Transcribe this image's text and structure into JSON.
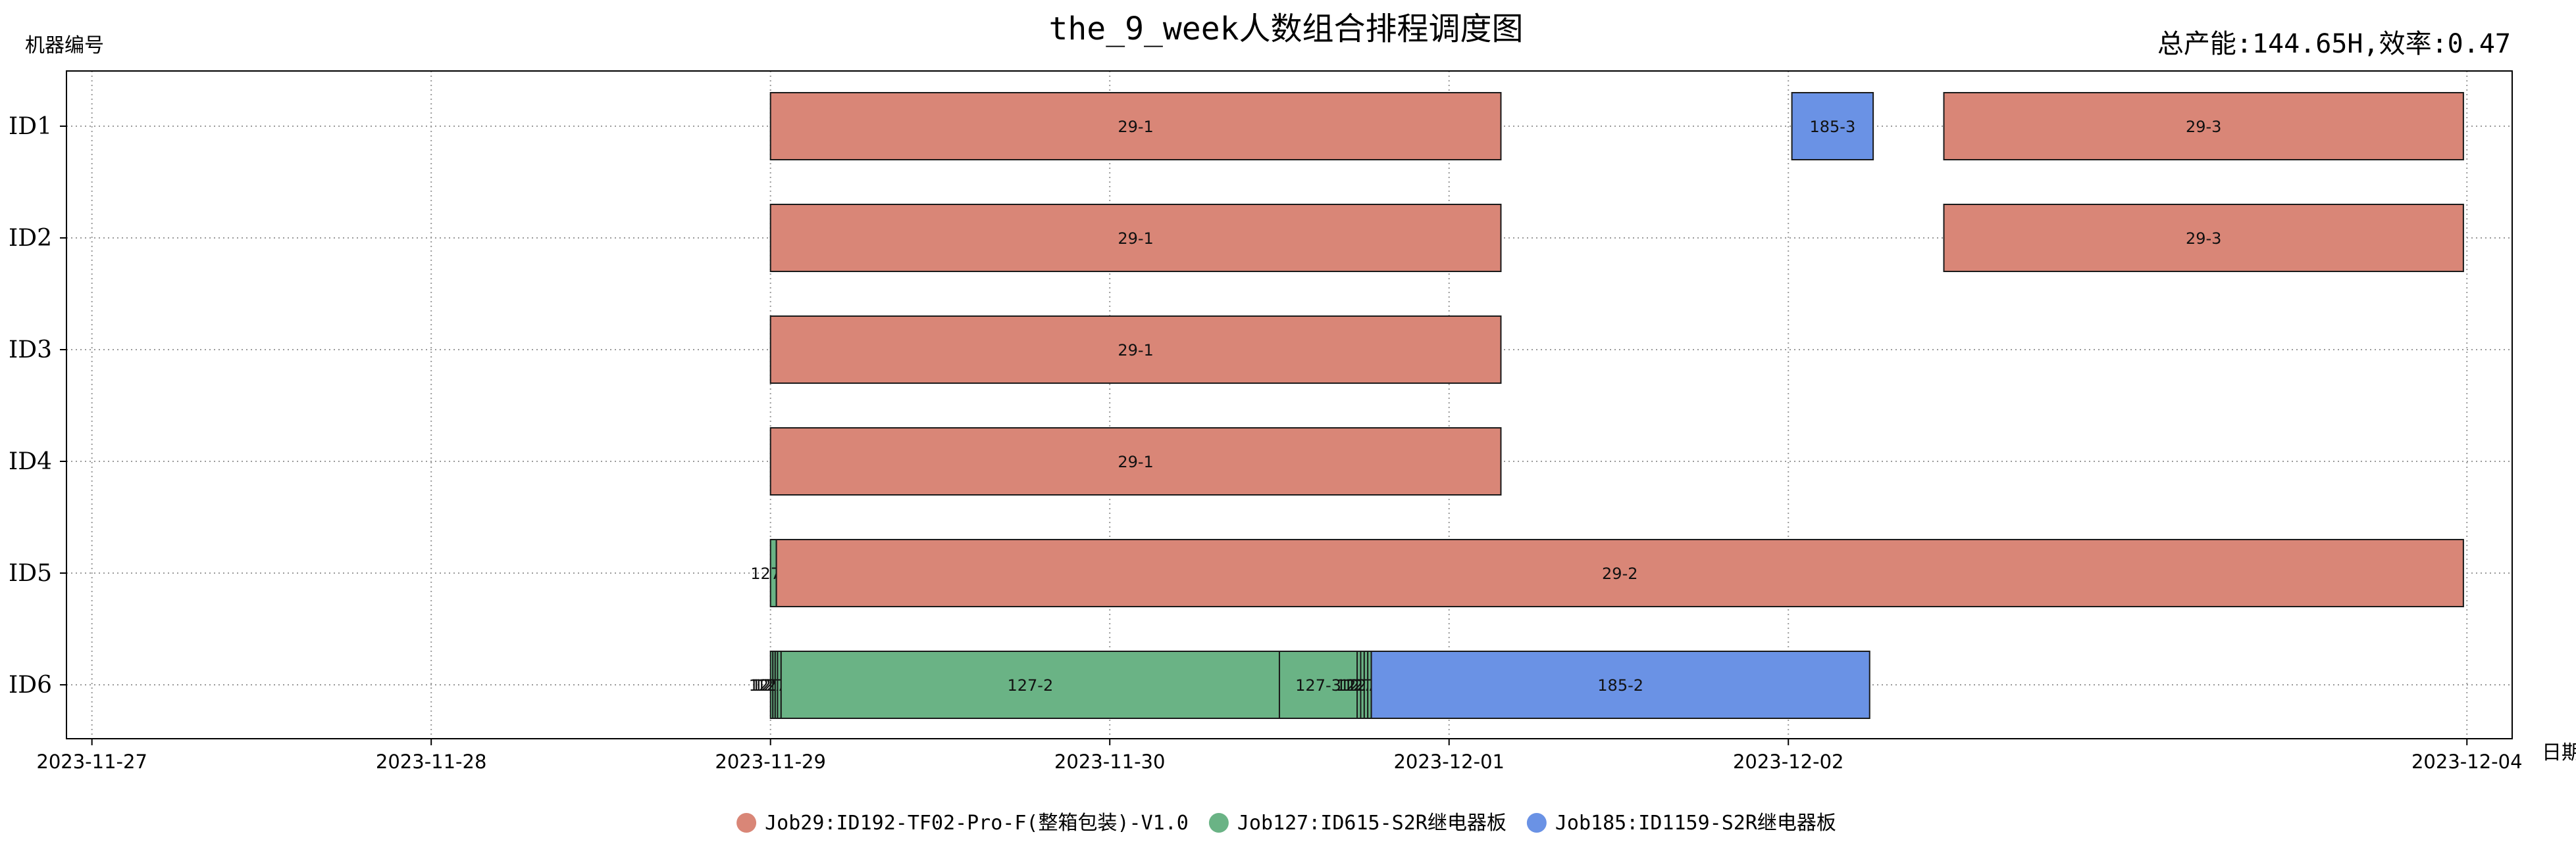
{
  "chart_data": {
    "type": "gantt",
    "title": "the_9_week人数组合排程调度图",
    "subtitle": "总产能:144.65H,效率:0.47",
    "ylabel": "机器编号",
    "xlabel": "日期",
    "grid": true,
    "legend_position": "bottom-center",
    "x_range": [
      "2023-11-26 22:12",
      "2023-12-04 03:12"
    ],
    "x_ticks": [
      "2023-11-27",
      "2023-11-28",
      "2023-11-29",
      "2023-11-30",
      "2023-12-01",
      "2023-12-02",
      "2023-12-04"
    ],
    "machines": [
      "ID1",
      "ID2",
      "ID3",
      "ID4",
      "ID5",
      "ID6"
    ],
    "series": [
      {
        "name": "Job29:ID192-TF02-Pro-F(整箱包装)-V1.0",
        "color": "#d98677"
      },
      {
        "name": "Job127:ID615-S2R继电器板",
        "color": "#6ab385"
      },
      {
        "name": "Job185:ID1159-S2R继电器板",
        "color": "#6a92e5"
      }
    ],
    "tasks": [
      {
        "machine": "ID1",
        "label": "29-1",
        "series": 0,
        "start": "2023-11-29 00:00",
        "end": "2023-12-01 03:40"
      },
      {
        "machine": "ID1",
        "label": "185-3",
        "series": 2,
        "start": "2023-12-02 00:15",
        "end": "2023-12-02 06:00"
      },
      {
        "machine": "ID1",
        "label": "29-3",
        "series": 0,
        "start": "2023-12-02 11:00",
        "end": "2023-12-03 23:45"
      },
      {
        "machine": "ID2",
        "label": "29-1",
        "series": 0,
        "start": "2023-11-29 00:00",
        "end": "2023-12-01 03:40"
      },
      {
        "machine": "ID2",
        "label": "29-3",
        "series": 0,
        "start": "2023-12-02 11:00",
        "end": "2023-12-03 23:45"
      },
      {
        "machine": "ID3",
        "label": "29-1",
        "series": 0,
        "start": "2023-11-29 00:00",
        "end": "2023-12-01 03:40"
      },
      {
        "machine": "ID4",
        "label": "29-1",
        "series": 0,
        "start": "2023-11-29 00:00",
        "end": "2023-12-01 03:40"
      },
      {
        "machine": "ID5",
        "label": "127-1",
        "series": 1,
        "start": "2023-11-29 00:00",
        "end": "2023-11-29 00:25"
      },
      {
        "machine": "ID5",
        "label": "29-2",
        "series": 0,
        "start": "2023-11-29 00:25",
        "end": "2023-12-03 23:45"
      },
      {
        "machine": "ID6",
        "label": "127-1",
        "series": 1,
        "start": "2023-11-29 00:00",
        "end": "2023-11-29 00:10"
      },
      {
        "machine": "ID6",
        "label": "127-1",
        "series": 1,
        "start": "2023-11-29 00:10",
        "end": "2023-11-29 00:20"
      },
      {
        "machine": "ID6",
        "label": "127-1",
        "series": 1,
        "start": "2023-11-29 00:20",
        "end": "2023-11-29 00:30"
      },
      {
        "machine": "ID6",
        "label": "127-1",
        "series": 1,
        "start": "2023-11-29 00:30",
        "end": "2023-11-29 00:45"
      },
      {
        "machine": "ID6",
        "label": "127-2",
        "series": 1,
        "start": "2023-11-29 00:45",
        "end": "2023-11-30 12:00"
      },
      {
        "machine": "ID6",
        "label": "127-3",
        "series": 1,
        "start": "2023-11-30 12:00",
        "end": "2023-11-30 17:30"
      },
      {
        "machine": "ID6",
        "label": "127-3",
        "series": 1,
        "start": "2023-11-30 17:30",
        "end": "2023-11-30 17:45"
      },
      {
        "machine": "ID6",
        "label": "127-3",
        "series": 1,
        "start": "2023-11-30 17:45",
        "end": "2023-11-30 18:00"
      },
      {
        "machine": "ID6",
        "label": "127-3",
        "series": 1,
        "start": "2023-11-30 18:00",
        "end": "2023-11-30 18:15"
      },
      {
        "machine": "ID6",
        "label": "127-3",
        "series": 1,
        "start": "2023-11-30 18:15",
        "end": "2023-11-30 18:30"
      },
      {
        "machine": "ID6",
        "label": "185-2",
        "series": 2,
        "start": "2023-11-30 18:30",
        "end": "2023-12-02 05:45"
      }
    ]
  }
}
